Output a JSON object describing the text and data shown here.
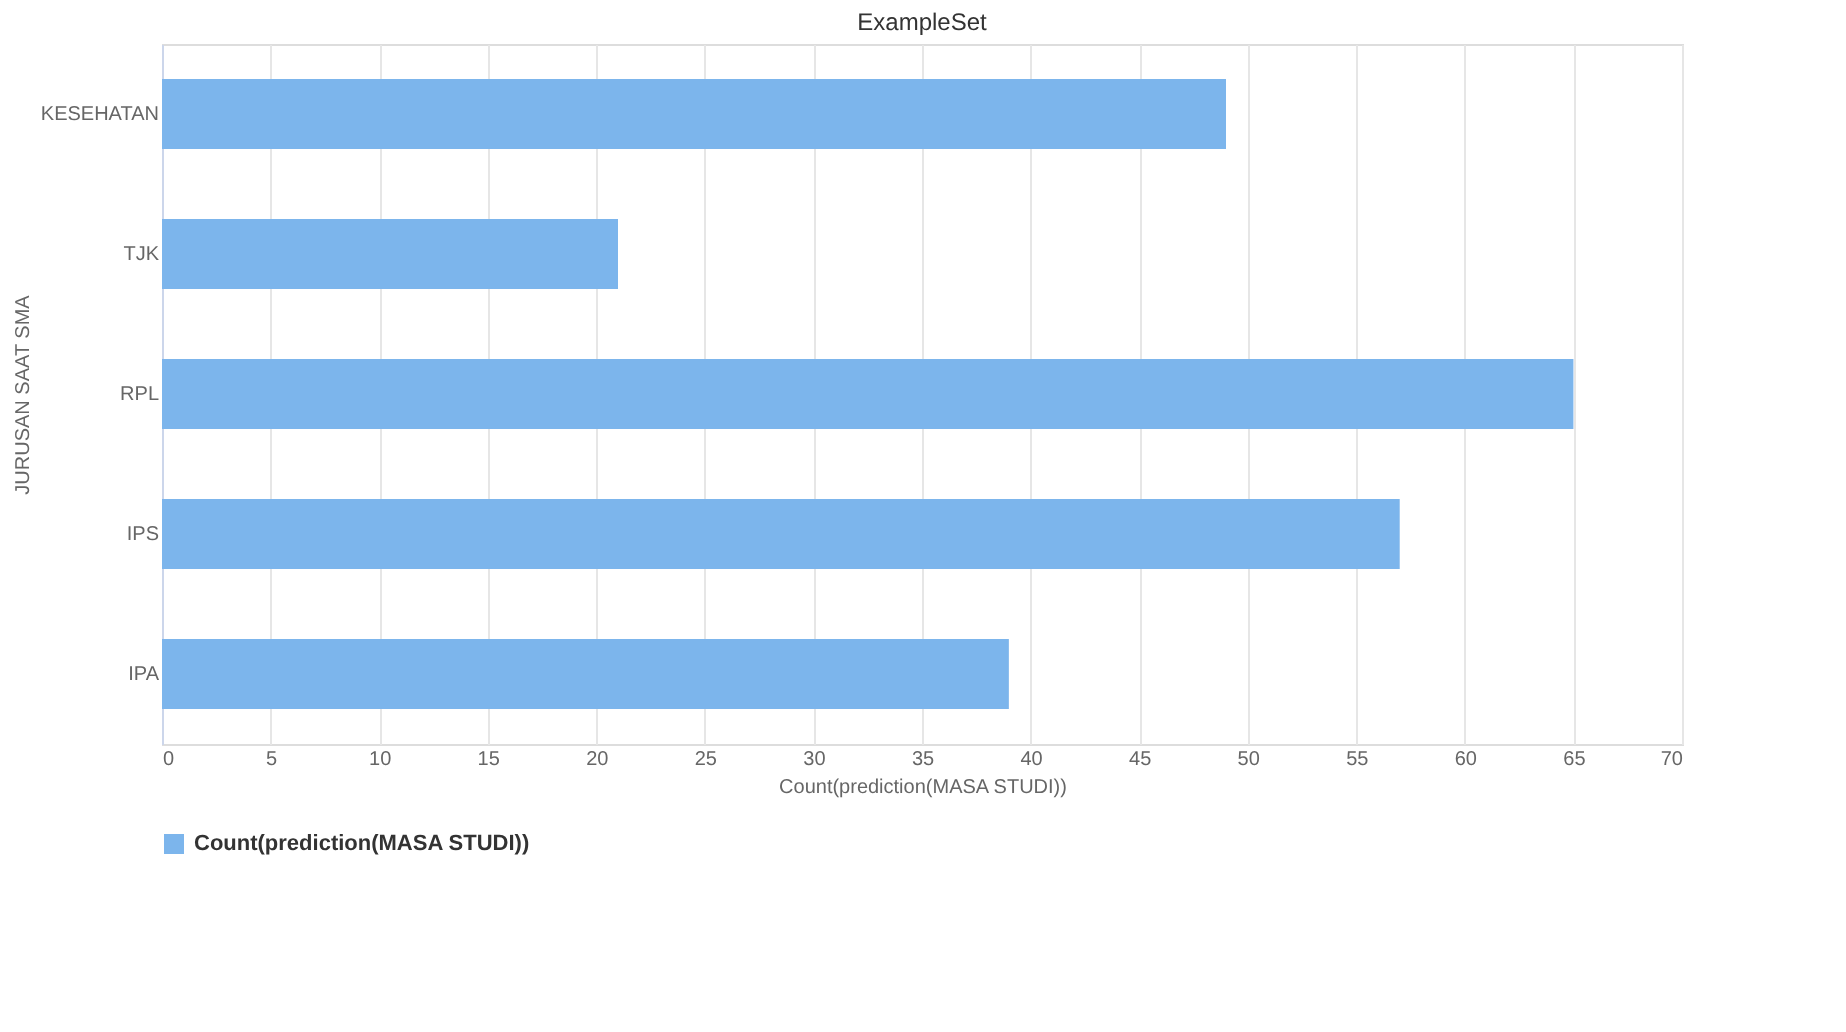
{
  "chart_data": {
    "type": "bar",
    "orientation": "horizontal",
    "title": "ExampleSet",
    "xlabel": "Count(prediction(MASA STUDI))",
    "ylabel": "JURUSAN SAAT SMA",
    "categories": [
      "KESEHATAN",
      "TJK",
      "RPL",
      "IPS",
      "IPA"
    ],
    "series": [
      {
        "name": "Count(prediction(MASA STUDI))",
        "color": "#7cb5ec",
        "values": [
          49,
          21,
          65,
          57,
          39
        ]
      }
    ],
    "xlim": [
      0,
      70
    ],
    "xticks": [
      0,
      5,
      10,
      15,
      20,
      25,
      30,
      35,
      40,
      45,
      50,
      55,
      60,
      65,
      70
    ],
    "grid": "x",
    "legend": "bottom"
  }
}
